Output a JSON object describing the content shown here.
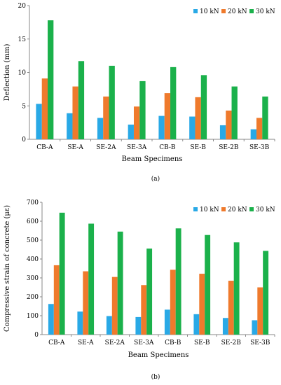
{
  "chart_data": [
    {
      "type": "bar",
      "panel_label": "(a)",
      "categories": [
        "CB-A",
        "SE-A",
        "SE-2A",
        "SE-3A",
        "CB-B",
        "SE-B",
        "SE-2B",
        "SE-3B"
      ],
      "series": [
        {
          "name": "10 kN",
          "color": "#29a9e6",
          "values": [
            5.3,
            3.9,
            3.2,
            2.2,
            3.5,
            3.4,
            2.1,
            1.5
          ]
        },
        {
          "name": "20 kN",
          "color": "#ef7a2c",
          "values": [
            9.1,
            7.9,
            6.4,
            4.9,
            6.9,
            6.3,
            4.3,
            3.2
          ]
        },
        {
          "name": "30 kN",
          "color": "#1bb14b",
          "values": [
            17.8,
            11.7,
            11.0,
            8.7,
            10.8,
            9.6,
            7.9,
            6.4
          ]
        }
      ],
      "xlabel": "Beam Specimens",
      "ylabel": "Deflection (mm)",
      "ylim": [
        0,
        20
      ],
      "yticks": [
        0,
        5,
        10,
        15,
        20
      ],
      "legend_position": "top-right",
      "grid": false
    },
    {
      "type": "bar",
      "panel_label": "(b)",
      "categories": [
        "CB-A",
        "SE-A",
        "SE-2A",
        "SE-3A",
        "CB-B",
        "SE-B",
        "SE-2B",
        "SE-3B"
      ],
      "series": [
        {
          "name": "10 kN",
          "color": "#29a9e6",
          "values": [
            162,
            122,
            98,
            93,
            132,
            108,
            88,
            76
          ]
        },
        {
          "name": "20 kN",
          "color": "#ef7a2c",
          "values": [
            367,
            335,
            305,
            262,
            343,
            322,
            285,
            250
          ]
        },
        {
          "name": "30 kN",
          "color": "#1bb14b",
          "values": [
            645,
            587,
            545,
            455,
            562,
            527,
            488,
            443
          ]
        }
      ],
      "xlabel": "Beam Specimens",
      "ylabel": "Compressive strain of concrete (με)",
      "ylim": [
        0,
        700
      ],
      "yticks": [
        0,
        100,
        200,
        300,
        400,
        500,
        600,
        700
      ],
      "legend_position": "top-right",
      "grid": false
    }
  ]
}
